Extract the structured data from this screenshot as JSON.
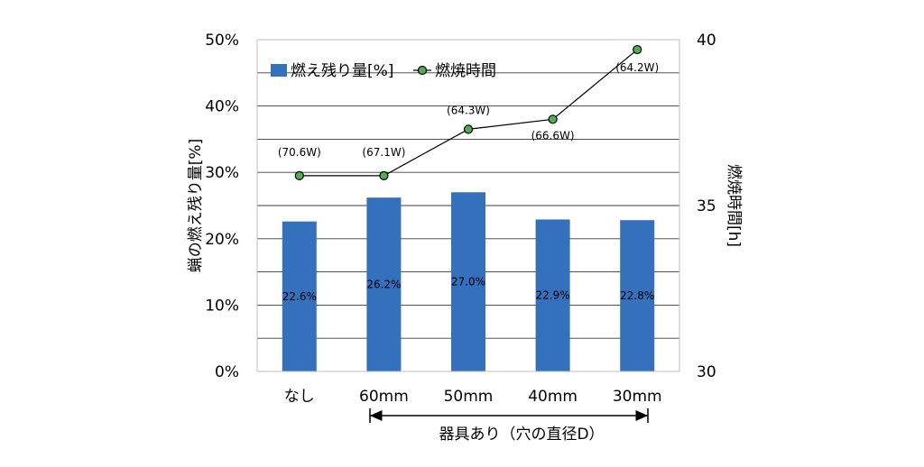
{
  "chart_data": {
    "type": "bar",
    "categories": [
      "なし",
      "60mm",
      "50mm",
      "40mm",
      "30mm"
    ],
    "series": [
      {
        "name": "燃え残り量[%]",
        "kind": "bar",
        "axis": "left",
        "color": "#3470BC",
        "values": [
          22.6,
          26.2,
          27.0,
          22.9,
          22.8
        ],
        "data_labels": [
          "22.6%",
          "26.2%",
          "27.0%",
          "22.9%",
          "22.8%"
        ]
      },
      {
        "name": "燃焼時間",
        "kind": "line",
        "axis": "right",
        "color": "#4CAF50",
        "line_color": "#000000",
        "values": [
          35.9,
          35.9,
          37.3,
          37.6,
          39.7
        ],
        "data_labels": [
          "(70.6W)",
          "(67.1W)",
          "(64.3W)",
          "(66.6W)",
          "(64.2W)"
        ]
      }
    ],
    "ylabel": "蝋の燃え残り量[%]",
    "y2label": "燃焼時間[h]",
    "ylim": [
      0,
      50
    ],
    "y2lim": [
      30,
      40
    ],
    "yticks": [
      "0%",
      "10%",
      "20%",
      "30%",
      "40%",
      "50%"
    ],
    "y2ticks": [
      "30",
      "35",
      "40"
    ],
    "x_group_note": "器具あり（穴の直径D）",
    "legend_position": "top-left",
    "grid": true
  }
}
